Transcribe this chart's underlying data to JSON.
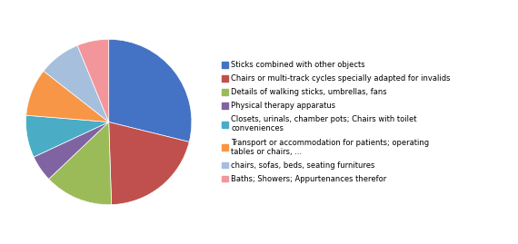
{
  "legend_labels": [
    "Sticks combined with other objects",
    "Chairs or multi-track cycles specially adapted for invalids",
    "Details of walking sticks, umbrellas, fans",
    "Physical therapy apparatus",
    "Closets, urinals, chamber pots; Chairs with toilet\nconveniences",
    "Transport or accommodation for patients; operating\ntables or chairs, ...",
    "chairs, sofas, beds, seating furnitures",
    "Baths; Showers; Appurtenances therefor"
  ],
  "sizes": [
    28,
    20,
    13,
    5,
    8,
    9,
    8,
    6
  ],
  "colors": [
    "#4472C4",
    "#C0504D",
    "#9BBB59",
    "#8064A2",
    "#4BACC6",
    "#F79646",
    "#A5BFDD",
    "#F2969B"
  ],
  "startangle": 90,
  "background_color": "#FFFFFF"
}
